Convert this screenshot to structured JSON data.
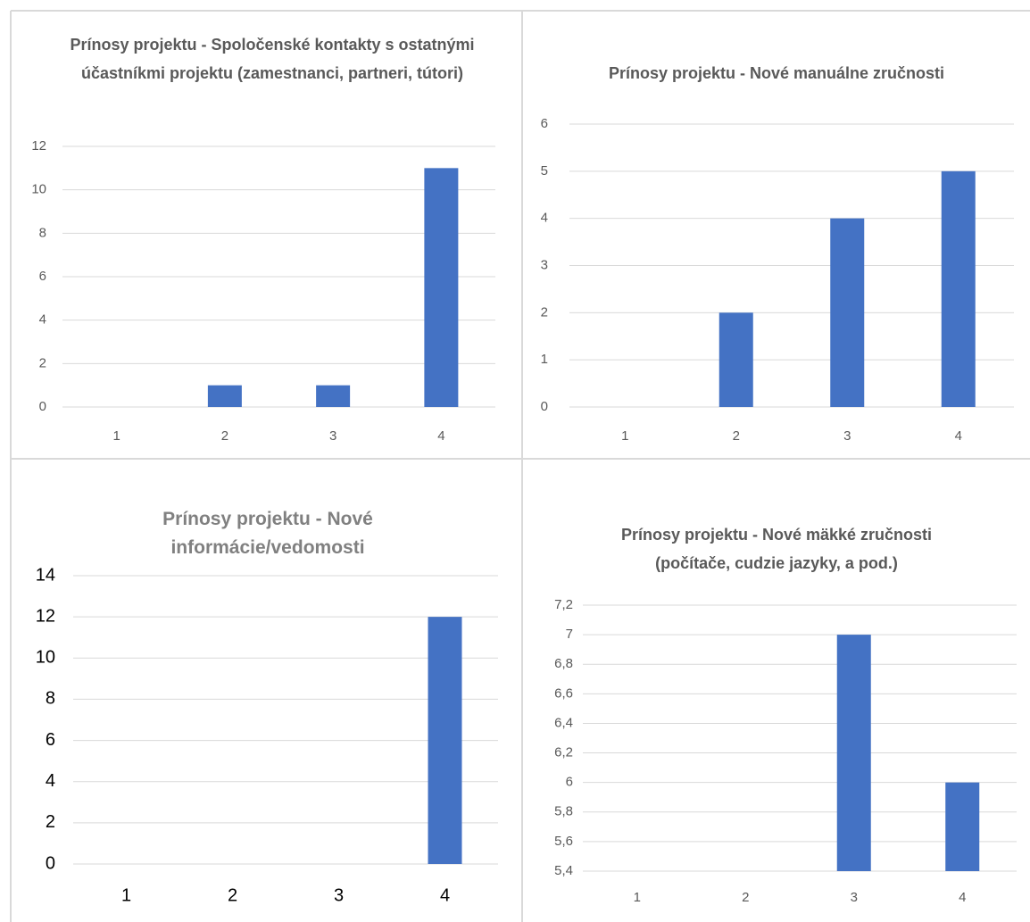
{
  "chart_data": [
    {
      "type": "bar",
      "title": "Prínosy projektu - Spoločenské kontakty s ostatnými účastníkmi projektu (zamestnanci, partneri, tútori)",
      "categories": [
        "1",
        "2",
        "3",
        "4"
      ],
      "values": [
        0,
        1,
        1,
        11
      ],
      "color": "#4472c4",
      "ylim": [
        0,
        12
      ],
      "yticks": [
        0,
        2,
        4,
        6,
        8,
        10,
        12
      ],
      "grid": true
    },
    {
      "type": "bar",
      "title": "Prínosy projektu - Nové manuálne zručnosti",
      "categories": [
        "1",
        "2",
        "3",
        "4"
      ],
      "values": [
        0,
        2,
        4,
        5
      ],
      "color": "#4472c4",
      "ylim": [
        0,
        6
      ],
      "yticks": [
        0,
        1,
        2,
        3,
        4,
        5,
        6
      ],
      "grid": true
    },
    {
      "type": "bar",
      "title": "Prínosy projektu - Nové informácie/vedomosti",
      "categories": [
        "1",
        "2",
        "3",
        "4"
      ],
      "values": [
        0,
        0,
        0,
        12
      ],
      "color": "#4472c4",
      "ylim": [
        0,
        14
      ],
      "yticks": [
        0,
        2,
        4,
        6,
        8,
        10,
        12,
        14
      ],
      "grid": true
    },
    {
      "type": "bar",
      "title": "Prínosy projektu - Nové mäkké zručnosti (počítače, cudzie jazyky, a pod.)",
      "categories": [
        "1",
        "2",
        "3",
        "4"
      ],
      "values": [
        null,
        null,
        7,
        6
      ],
      "color": "#4472c4",
      "ylim": [
        5.4,
        7.2
      ],
      "yticks": [
        {
          "value": 5.4,
          "label": "5,4"
        },
        {
          "value": 5.6,
          "label": "5,6"
        },
        {
          "value": 5.8,
          "label": "5,8"
        },
        {
          "value": 6,
          "label": "6"
        },
        {
          "value": 6.2,
          "label": "6,2"
        },
        {
          "value": 6.4,
          "label": "6,4"
        },
        {
          "value": 6.6,
          "label": "6,6"
        },
        {
          "value": 6.8,
          "label": "6,8"
        },
        7,
        {
          "value": 7.2,
          "label": "7,2"
        }
      ],
      "grid": true
    }
  ]
}
